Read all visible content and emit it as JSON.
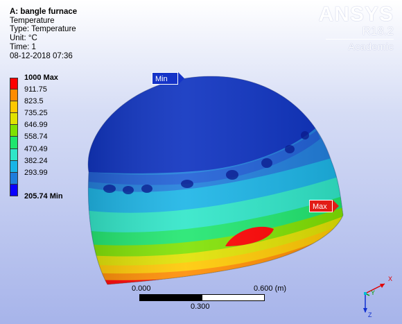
{
  "info": {
    "title": "A: bangle furnace",
    "lines": [
      "Temperature",
      "Type: Temperature",
      "Unit: °C",
      "Time: 1",
      "08-12-2018 07:36"
    ]
  },
  "logo": {
    "brand": "ANSYS",
    "version": "R18.2",
    "edition": "Academic"
  },
  "legend": {
    "max_label": "1000 Max",
    "min_label": "205.74 Min",
    "levels": [
      "911.75",
      "823.5",
      "735.25",
      "646.99",
      "558.74",
      "470.49",
      "382.24",
      "293.99"
    ],
    "colors": [
      "#ff0000",
      "#ff8c00",
      "#ffc800",
      "#e1e100",
      "#7fe100",
      "#1ee66e",
      "#2ee6c8",
      "#19b4e6",
      "#1e7ddc",
      "#0a00ff"
    ]
  },
  "probes": {
    "min": "Min",
    "max": "Max"
  },
  "scale": {
    "start": "0.000",
    "mid": "0.300",
    "end": "0.600 (m)"
  },
  "triad": {
    "x": "X",
    "y": "Y",
    "z": "Z"
  }
}
